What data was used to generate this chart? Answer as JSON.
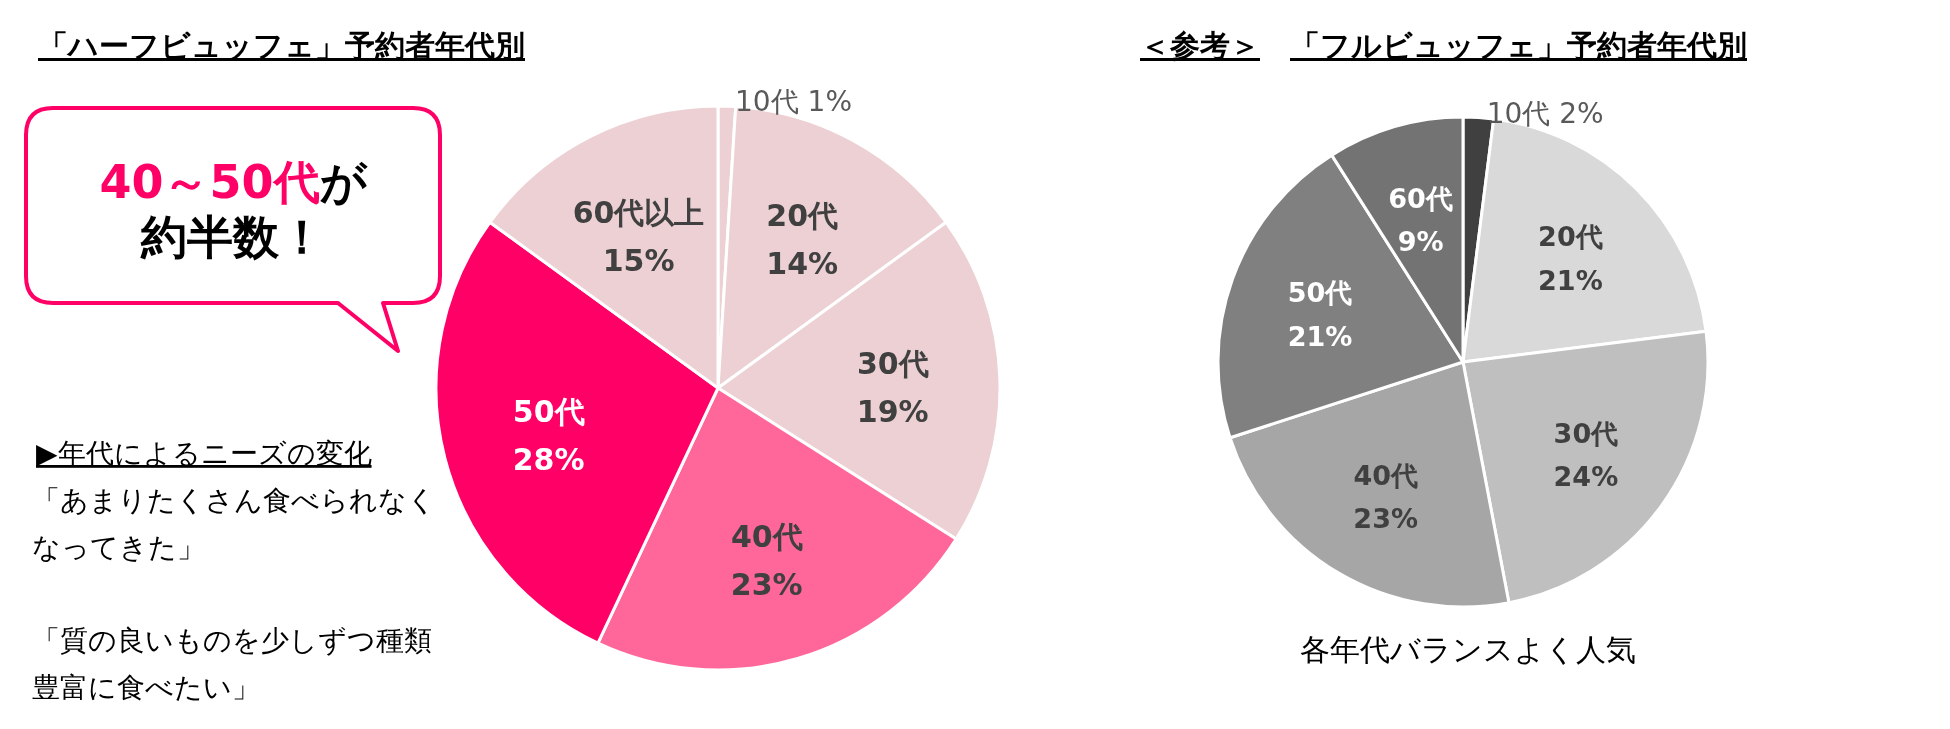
{
  "chart_data": [
    {
      "type": "pie",
      "title": "「ハーフビュッフェ」予約者年代別",
      "categories": [
        "10代",
        "20代",
        "30代",
        "40代",
        "50代",
        "60代以上"
      ],
      "values": [
        1,
        14,
        19,
        23,
        28,
        15
      ],
      "colors": [
        "#ecd0d4",
        "#ecd0d4",
        "#ecd0d4",
        "#ff6699",
        "#ff0066",
        "#ecd0d4"
      ],
      "value_labels": [
        "1%",
        "14%",
        "19%",
        "23%",
        "28%",
        "15%"
      ],
      "annotations": [
        "40～50代",
        "が",
        "約半数！",
        "▶年代によるニーズの変化",
        "「あまりたくさん食べられなくなってきた」",
        "「質の良いものを少しずつ種類豊富に食べたい」"
      ]
    },
    {
      "type": "pie",
      "title": "＜参考＞　「フルビュッフェ」予約者年代別",
      "categories": [
        "10代",
        "20代",
        "30代",
        "40代",
        "50代",
        "60代"
      ],
      "values": [
        2,
        21,
        24,
        23,
        21,
        9
      ],
      "colors": [
        "#404040",
        "#d9d9d9",
        "#bfbfbf",
        "#a6a6a6",
        "#808080",
        "#737373"
      ],
      "value_labels": [
        "2%",
        "21%",
        "24%",
        "23%",
        "21%",
        "9%"
      ],
      "annotations": [
        "各年代バランスよく人気"
      ]
    }
  ]
}
